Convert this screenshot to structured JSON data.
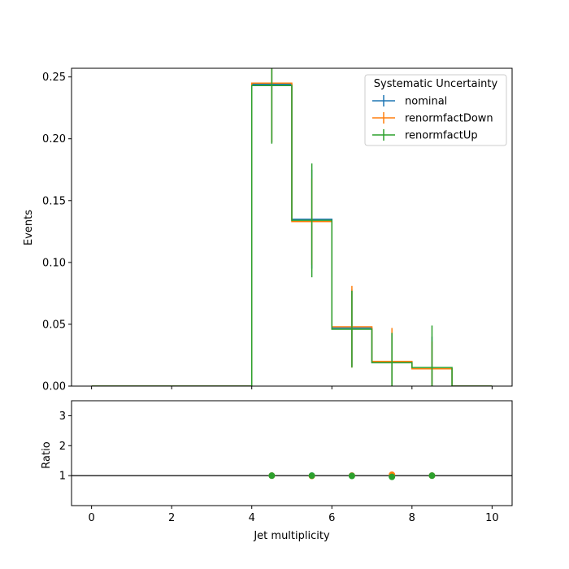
{
  "chart_data": [
    {
      "type": "histogram-step",
      "xlabel": "",
      "ylabel": "Events",
      "xlim": [
        -0.5,
        10.5
      ],
      "ylim": [
        0,
        0.257
      ],
      "yticks": [
        0.0,
        0.05,
        0.1,
        0.15,
        0.2,
        0.25
      ],
      "ytick_labels": [
        "0.00",
        "0.05",
        "0.10",
        "0.15",
        "0.20",
        "0.25"
      ],
      "xticks": [
        0,
        2,
        4,
        6,
        8,
        10
      ],
      "grid": false,
      "legend": {
        "title": "Systematic Uncertainty",
        "position": "upper-right"
      },
      "bin_edges": [
        0,
        1,
        2,
        3,
        4,
        5,
        6,
        7,
        8,
        9,
        10
      ],
      "series": [
        {
          "name": "nominal",
          "color": "#1f77b4",
          "values": [
            0,
            0,
            0,
            0,
            0.244,
            0.135,
            0.047,
            0.019,
            0.014,
            0
          ],
          "errors": [
            0,
            0,
            0,
            0,
            0.047,
            0.04,
            0.031,
            0.024,
            0.026,
            0
          ]
        },
        {
          "name": "renormfactDown",
          "color": "#ff7f0e",
          "values": [
            0,
            0,
            0,
            0,
            0.245,
            0.133,
            0.048,
            0.02,
            0.014,
            0
          ],
          "errors": [
            0,
            0,
            0,
            0,
            0.048,
            0.035,
            0.033,
            0.027,
            0.022,
            0
          ]
        },
        {
          "name": "renormfactUp",
          "color": "#2ca02c",
          "values": [
            0,
            0,
            0,
            0,
            0.243,
            0.134,
            0.046,
            0.019,
            0.015,
            0
          ],
          "errors": [
            0,
            0,
            0,
            0,
            0.047,
            0.046,
            0.031,
            0.024,
            0.034,
            0
          ]
        }
      ]
    },
    {
      "type": "scatter",
      "xlabel": "Jet multiplicity",
      "ylabel": "Ratio",
      "xlim": [
        -0.5,
        10.5
      ],
      "ylim": [
        0,
        3.5
      ],
      "yticks": [
        1,
        2,
        3
      ],
      "ytick_labels": [
        "1",
        "2",
        "3"
      ],
      "xticks": [
        0,
        2,
        4,
        6,
        8,
        10
      ],
      "xtick_labels": [
        "0",
        "2",
        "4",
        "6",
        "8",
        "10"
      ],
      "reference_line": 1,
      "x": [
        4.5,
        5.5,
        6.5,
        7.5,
        8.5
      ],
      "series": [
        {
          "name": "nominal",
          "color": "#1f77b4",
          "values": [
            1.0,
            1.0,
            1.0,
            1.0,
            1.0
          ]
        },
        {
          "name": "renormfactDown",
          "color": "#ff7f0e",
          "values": [
            1.0,
            0.99,
            1.0,
            1.03,
            1.0
          ]
        },
        {
          "name": "renormfactUp",
          "color": "#2ca02c",
          "values": [
            1.0,
            1.0,
            0.99,
            0.96,
            1.0
          ]
        }
      ]
    }
  ]
}
